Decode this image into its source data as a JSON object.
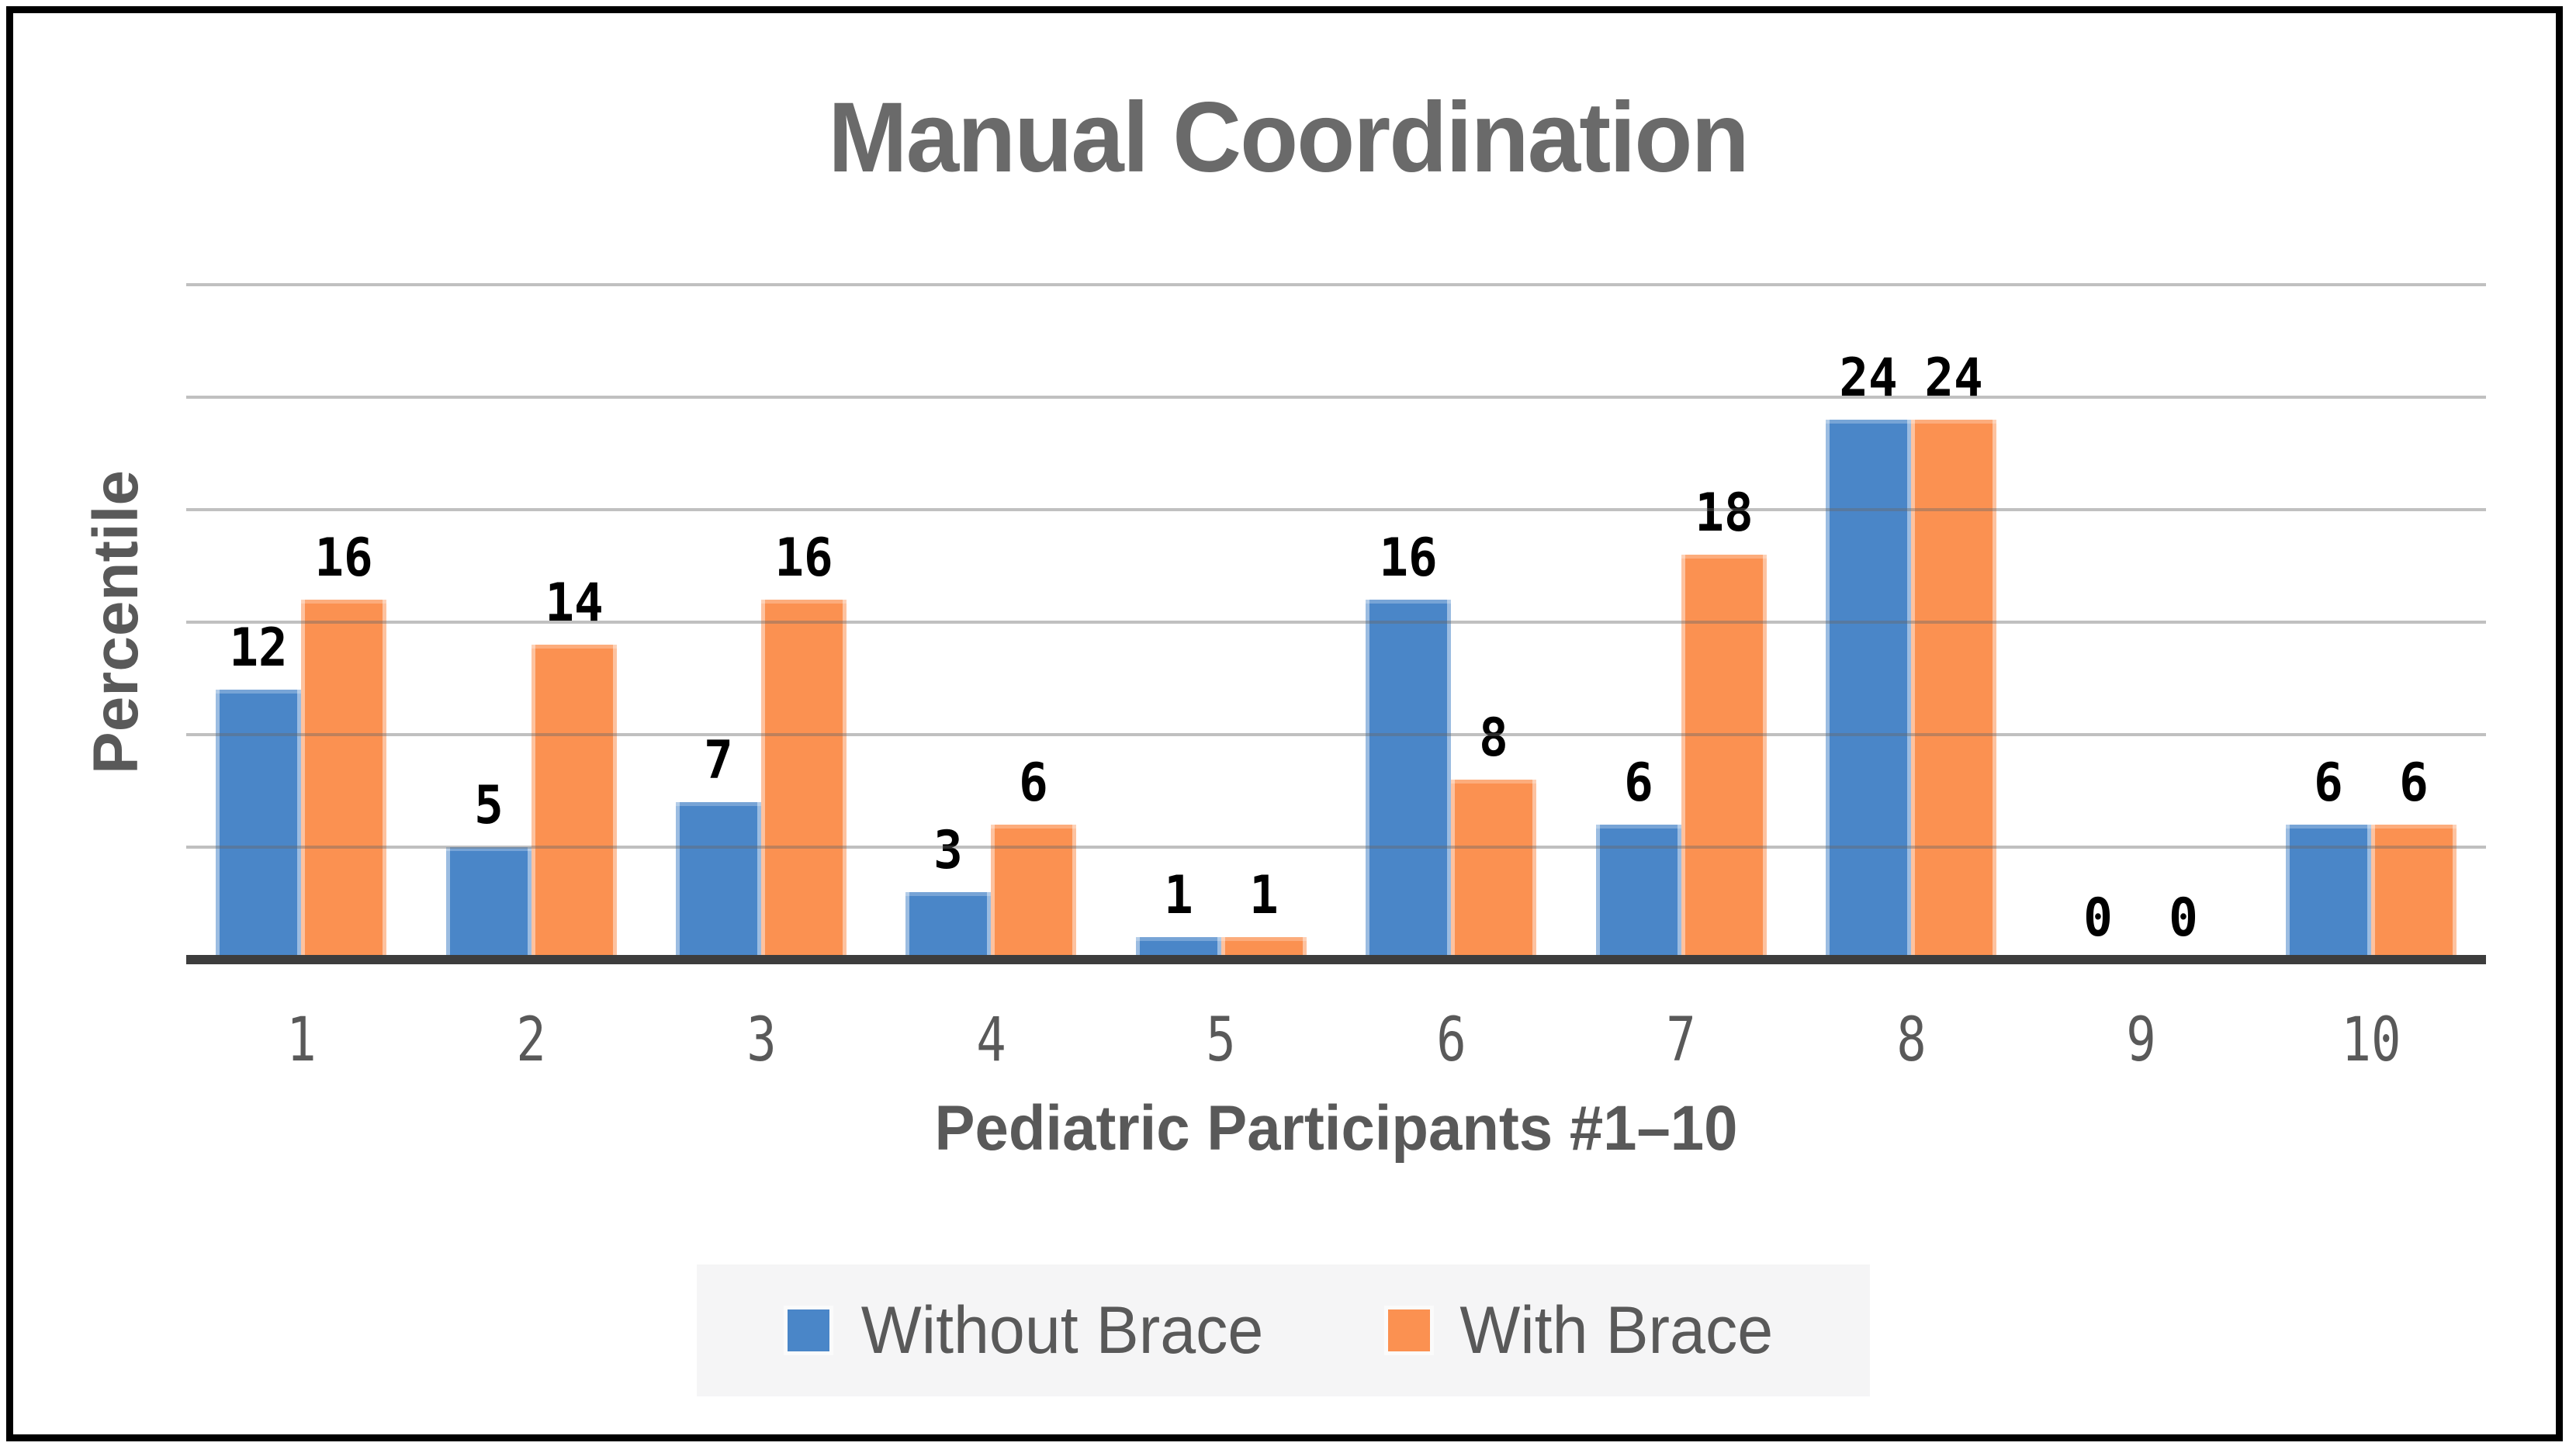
{
  "chart_data": {
    "type": "bar",
    "title": "Manual Coordination",
    "xlabel": "Pediatric Participants #1–10",
    "ylabel": "Percentile",
    "categories": [
      "1",
      "2",
      "3",
      "4",
      "5",
      "6",
      "7",
      "8",
      "9",
      "10"
    ],
    "series": [
      {
        "name": "Without Brace",
        "color": "#4a86c8",
        "values": [
          12,
          5,
          7,
          3,
          1,
          16,
          6,
          24,
          0,
          6
        ]
      },
      {
        "name": "With Brace",
        "color": "#fb9151",
        "values": [
          16,
          14,
          16,
          6,
          1,
          8,
          18,
          24,
          0,
          6
        ]
      }
    ],
    "ylim": [
      0,
      30
    ],
    "gridline_step": 5,
    "grid": "horizontal",
    "y_tick_labels_visible": false,
    "data_labels": true,
    "legend_position": "bottom",
    "colors": {
      "title_text": "#6a6a6a",
      "axis_text": "#595959",
      "data_label_text": "#000000",
      "axis_line": "#3d3d3d",
      "gridline": "#c3c3c3",
      "legend_background": "#f5f5f6",
      "frame_border": "#000000"
    }
  }
}
